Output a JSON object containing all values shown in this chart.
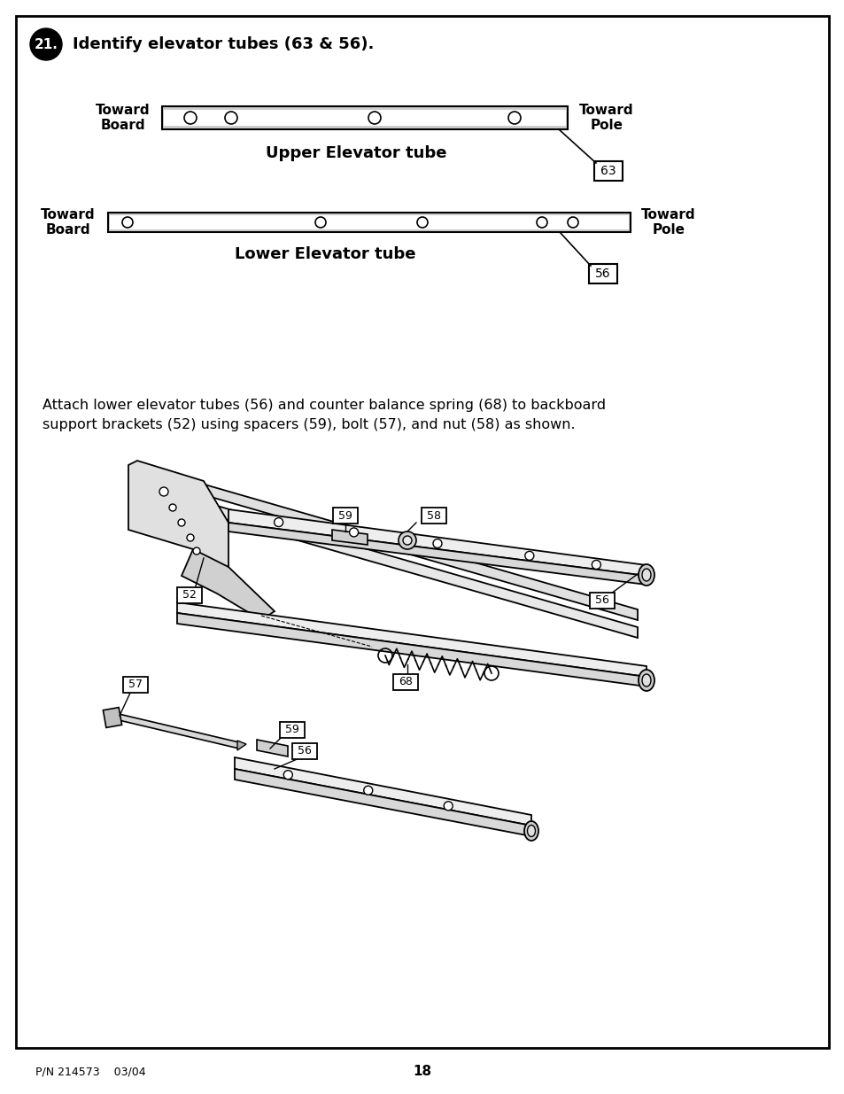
{
  "bg_color": "#ffffff",
  "border_color": "#000000",
  "title_step": "21.",
  "title_text": "Identify elevator tubes (63 & 56).",
  "upper_tube_label": "Upper Elevator tube",
  "lower_tube_label": "Lower Elevator tube",
  "upper_part_num": "63",
  "lower_part_num": "56",
  "toward_board": "Toward\nBoard",
  "toward_pole": "Toward\nPole",
  "body_text": "Attach lower elevator tubes (56) and counter balance spring (68) to backboard\nsupport brackets (52) using spacers (59), bolt (57), and nut (58) as shown.",
  "footer_left": "P/N 214573    03/04",
  "footer_center": "18"
}
